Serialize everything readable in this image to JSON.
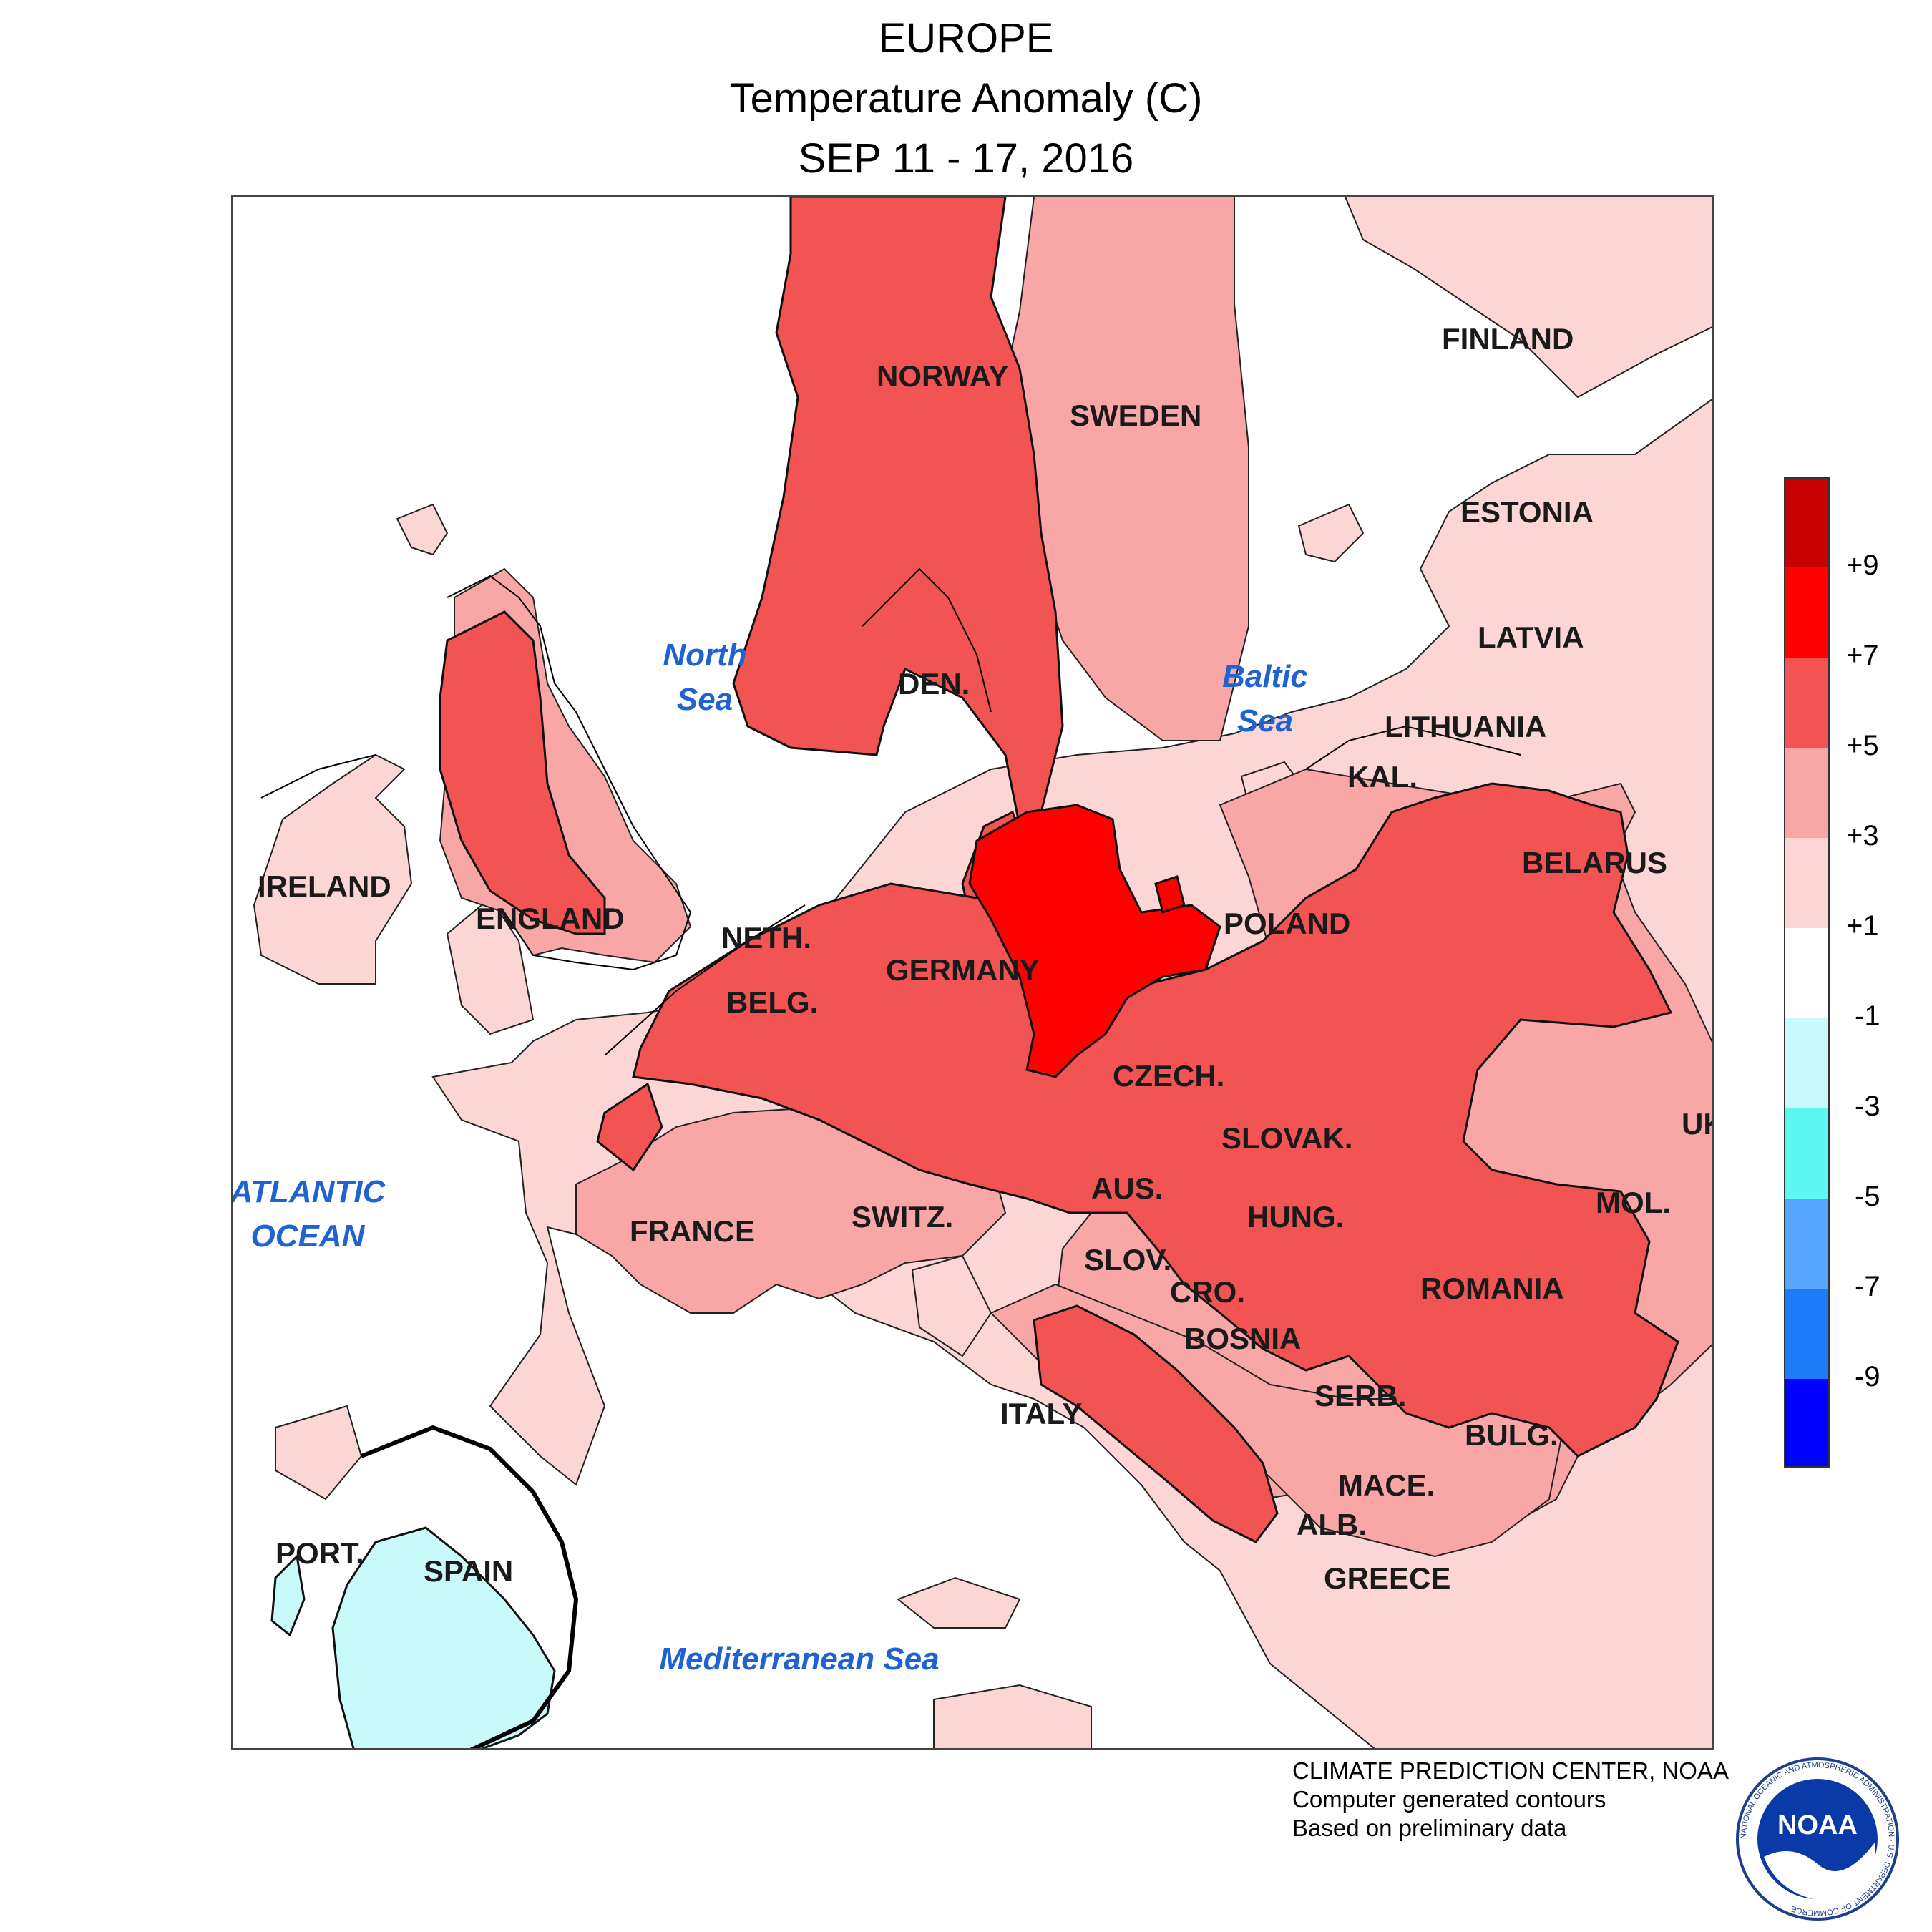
{
  "title": {
    "line1": "EUROPE",
    "line2": "Temperature Anomaly (C)",
    "line3": "SEP 11 - 17, 2016"
  },
  "map": {
    "countries": [
      "FINLAND",
      "NORWAY",
      "SWEDEN",
      "ESTONIA",
      "LATVIA",
      "DEN.",
      "LITHUANIA",
      "KAL.",
      "BELARUS",
      "IRELAND",
      "ENGLAND",
      "NETH.",
      "POLAND",
      "GERMANY",
      "BELG.",
      "CZECH.",
      "UK",
      "SLOVAK.",
      "AUS.",
      "MOL.",
      "FRANCE",
      "SWITZ.",
      "HUNG.",
      "SLOV.",
      "ROMANIA",
      "CRO.",
      "BOSNIA",
      "SERB.",
      "ITALY",
      "BULG.",
      "MACE.",
      "ALB.",
      "PORT.",
      "SPAIN",
      "GREECE"
    ],
    "seas": [
      "North",
      "Sea",
      "Baltic",
      "Sea",
      "ATLANTIC",
      "OCEAN",
      "Mediterranean Sea"
    ],
    "colors": {
      "anom_1_3": "#fcd5d5",
      "anom_3_5": "#f8a6a6",
      "anom_5_7": "#f25454",
      "anom_7_9": "#ff0000",
      "cool_1_3": "#c9fafa",
      "water": "#ffffff"
    }
  },
  "legend": {
    "labels": [
      "+9",
      "+7",
      "+5",
      "+3",
      "+1",
      "-1",
      "-3",
      "-5",
      "-7",
      "-9"
    ],
    "colors": [
      "#c80000",
      "#ff0000",
      "#f25454",
      "#f8a6a6",
      "#fcd5d5",
      "#ffffff",
      "#c9fafa",
      "#5cf8f0",
      "#55a6fc",
      "#1e7cf8",
      "#0000ff"
    ]
  },
  "credit": {
    "line1": "CLIMATE PREDICTION CENTER, NOAA",
    "line2": "Computer generated contours",
    "line3": "Based on preliminary data"
  },
  "logo": {
    "text": "NOAA",
    "ring_text": "NATIONAL OCEANIC AND ATMOSPHERIC ADMINISTRATION · U.S. DEPARTMENT OF COMMERCE"
  }
}
